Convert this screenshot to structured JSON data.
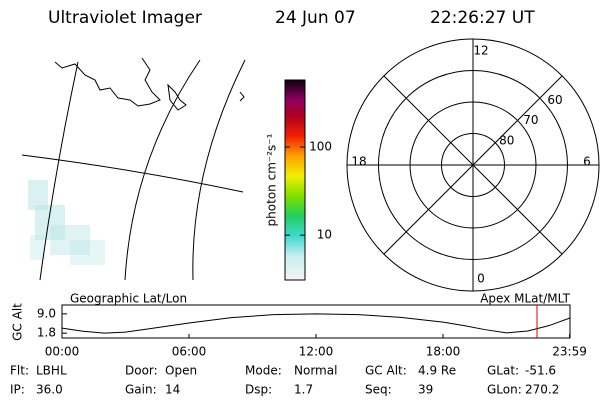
{
  "header": {
    "title": "Ultraviolet Imager",
    "date": "24 Jun 07",
    "time": "22:26:27 UT"
  },
  "colorbar": {
    "label": "photon cm⁻²s⁻¹",
    "scale": "log",
    "lim": [
      3.1,
      575
    ],
    "ticks": [
      10,
      100
    ]
  },
  "map": {
    "label": "Geographic Lat/Lon"
  },
  "polar": {
    "label": "Apex MLat/MLT",
    "rlim": [
      90,
      50
    ],
    "rticks": [
      80,
      70,
      60
    ],
    "mlt_ticks": [
      12,
      6,
      0,
      18
    ]
  },
  "altitude_plot": {
    "type": "line",
    "ylabel": "GC Alt",
    "color": "#000000",
    "marker_color": "#e00000",
    "x": [
      0,
      1,
      2,
      3,
      4,
      6,
      8,
      10,
      12,
      14,
      16,
      18,
      19,
      20,
      21,
      22,
      23,
      23.98
    ],
    "values": [
      3.7,
      2.5,
      1.8,
      2.2,
      3.3,
      5.6,
      7.6,
      8.7,
      9.0,
      8.7,
      7.7,
      5.9,
      4.6,
      3.1,
      1.9,
      2.6,
      4.6,
      7.4
    ],
    "xlim": [
      0,
      24
    ],
    "ylim": [
      0,
      12.3
    ],
    "xticks": [
      {
        "value": 0,
        "label": "00:00"
      },
      {
        "value": 6,
        "label": "06:00"
      },
      {
        "value": 12,
        "label": "12:00"
      },
      {
        "value": 18,
        "label": "18:00"
      },
      {
        "value": 23.98,
        "label": "23:59"
      }
    ],
    "yticks": [
      {
        "value": 9,
        "label": "9.0"
      },
      {
        "value": 1.8,
        "label": "1.8"
      }
    ]
  },
  "footer": {
    "columns": [
      [
        [
          "Flt:",
          "LBHL"
        ],
        [
          "IP:",
          "36.0"
        ]
      ],
      [
        [
          "Door:",
          "Open"
        ],
        [
          "Gain:",
          "14"
        ]
      ],
      [
        [
          "Mode:",
          "Normal"
        ],
        [
          "Dsp:",
          "1.7"
        ]
      ],
      [
        [
          "GC Alt:",
          "4.9 Re"
        ],
        [
          "Seq:",
          "39"
        ]
      ],
      [
        [
          "GLat:",
          "-51.6"
        ],
        [
          "GLon:",
          "270.2"
        ]
      ]
    ]
  }
}
